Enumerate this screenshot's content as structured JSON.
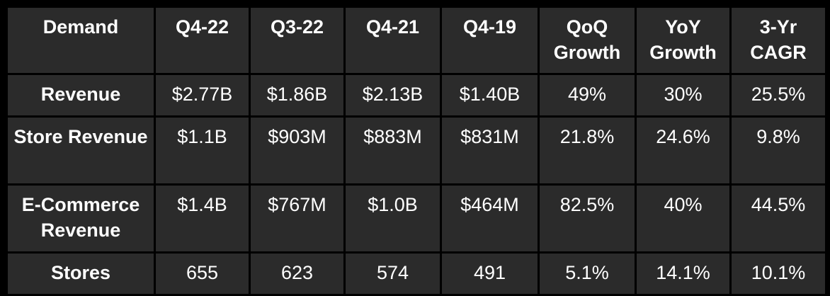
{
  "table": {
    "headers": [
      "Demand",
      "Q4-22",
      "Q3-22",
      "Q4-21",
      "Q4-19",
      "QoQ Growth",
      "YoY Growth",
      "3-Yr CAGR"
    ],
    "rows": [
      {
        "label": "Revenue",
        "values": [
          "$2.77B",
          "$1.86B",
          "$2.13B",
          "$1.40B",
          "49%",
          "30%",
          "25.5%"
        ]
      },
      {
        "label": "Store Revenue",
        "values": [
          "$1.1B",
          "$903M",
          "$883M",
          "$831M",
          "21.8%",
          "24.6%",
          "9.8%"
        ]
      },
      {
        "label": "E-Commerce Revenue",
        "values": [
          "$1.4B",
          "$767M",
          "$1.0B",
          "$464M",
          "82.5%",
          "40%",
          "44.5%"
        ]
      },
      {
        "label": "Stores",
        "values": [
          "655",
          "623",
          "574",
          "491",
          "5.1%",
          "14.1%",
          "10.1%"
        ]
      }
    ]
  },
  "colors": {
    "background": "#000000",
    "cell": "#2b2b2b",
    "text": "#ffffff"
  }
}
